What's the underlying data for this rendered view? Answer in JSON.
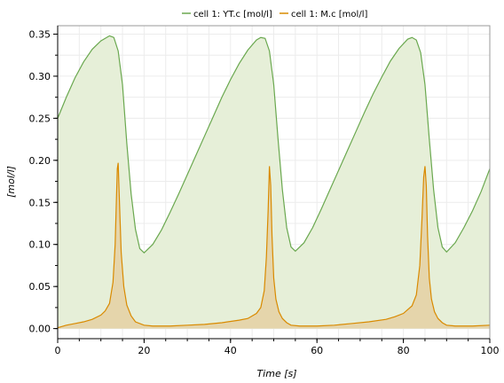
{
  "chart_data": {
    "type": "area",
    "title": "",
    "xlabel": "Time [s]",
    "ylabel": "[mol/l]",
    "xlim": [
      0,
      100
    ],
    "ylim": [
      -0.012,
      0.36
    ],
    "xticks": [
      0,
      20,
      40,
      60,
      80,
      100
    ],
    "xtick_labels": [
      "0",
      "20",
      "40",
      "60",
      "80",
      "100"
    ],
    "yticks": [
      0.0,
      0.05,
      0.1,
      0.15,
      0.2,
      0.25,
      0.3,
      0.35
    ],
    "ytick_labels": [
      "0.00",
      "0.05",
      "0.10",
      "0.15",
      "0.20",
      "0.25",
      "0.30",
      "0.35"
    ],
    "grid": true,
    "legend_position": "top-center",
    "series": [
      {
        "name": "cell 1: YT.c [mol/l]",
        "color": "#6aa84f",
        "fill": "#e6efd8",
        "x": [
          0,
          2,
          4,
          6,
          8,
          10,
          12,
          13,
          14,
          15,
          16,
          17,
          18,
          19,
          20,
          22,
          24,
          26,
          28,
          30,
          32,
          34,
          36,
          38,
          40,
          42,
          44,
          46,
          47,
          48,
          49,
          50,
          51,
          52,
          53,
          54,
          55,
          57,
          59,
          61,
          63,
          65,
          67,
          69,
          71,
          73,
          75,
          77,
          79,
          81,
          82,
          83,
          84,
          85,
          86,
          87,
          88,
          89,
          90,
          92,
          94,
          96,
          98,
          100
        ],
        "values": [
          0.25,
          0.275,
          0.298,
          0.317,
          0.332,
          0.342,
          0.348,
          0.346,
          0.33,
          0.29,
          0.22,
          0.16,
          0.118,
          0.095,
          0.09,
          0.1,
          0.117,
          0.138,
          0.16,
          0.183,
          0.206,
          0.229,
          0.252,
          0.275,
          0.296,
          0.315,
          0.331,
          0.343,
          0.346,
          0.345,
          0.33,
          0.29,
          0.225,
          0.165,
          0.12,
          0.097,
          0.092,
          0.102,
          0.12,
          0.142,
          0.165,
          0.188,
          0.211,
          0.234,
          0.257,
          0.279,
          0.299,
          0.318,
          0.333,
          0.344,
          0.346,
          0.343,
          0.328,
          0.29,
          0.225,
          0.165,
          0.12,
          0.097,
          0.091,
          0.102,
          0.12,
          0.14,
          0.163,
          0.19
        ]
      },
      {
        "name": "cell 1: M.c [mol/l]",
        "color": "#d98a00",
        "fill": "#e4d2a6",
        "x": [
          0,
          2,
          4,
          6,
          8,
          10,
          11,
          12,
          12.8,
          13.3,
          13.6,
          13.8,
          14.0,
          14.3,
          14.7,
          15.3,
          16,
          17,
          18,
          20,
          22,
          26,
          30,
          34,
          38,
          42,
          44,
          46,
          47,
          47.8,
          48.3,
          48.7,
          49.0,
          49.3,
          49.6,
          50.0,
          50.5,
          51.2,
          52,
          53,
          54,
          56,
          60,
          64,
          68,
          72,
          76,
          78,
          80,
          82,
          83,
          83.8,
          84.3,
          84.7,
          85.0,
          85.3,
          85.6,
          86.0,
          86.5,
          87.2,
          88,
          89,
          90,
          92,
          96,
          100
        ],
        "values": [
          0.001,
          0.004,
          0.006,
          0.008,
          0.011,
          0.016,
          0.021,
          0.03,
          0.055,
          0.1,
          0.155,
          0.19,
          0.197,
          0.15,
          0.09,
          0.05,
          0.028,
          0.015,
          0.008,
          0.004,
          0.003,
          0.003,
          0.004,
          0.005,
          0.007,
          0.01,
          0.012,
          0.018,
          0.025,
          0.045,
          0.085,
          0.14,
          0.193,
          0.17,
          0.11,
          0.06,
          0.035,
          0.02,
          0.012,
          0.007,
          0.004,
          0.003,
          0.003,
          0.004,
          0.006,
          0.008,
          0.011,
          0.014,
          0.018,
          0.027,
          0.04,
          0.075,
          0.13,
          0.18,
          0.193,
          0.17,
          0.11,
          0.06,
          0.035,
          0.02,
          0.012,
          0.007,
          0.004,
          0.003,
          0.003,
          0.004
        ]
      }
    ]
  }
}
